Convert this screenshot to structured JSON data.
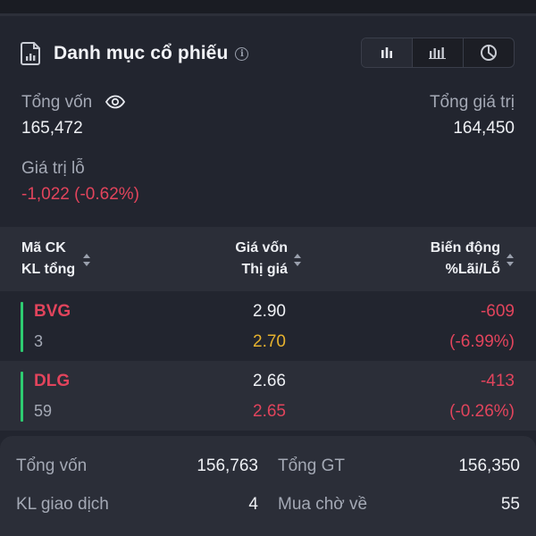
{
  "portfolio": {
    "title": "Danh mục cổ phiếu",
    "view_options": [
      "bar-chart-icon",
      "column-chart-icon",
      "pie-chart-icon"
    ],
    "total_capital_label": "Tổng vốn",
    "total_capital_value": "165,472",
    "total_value_label": "Tổng giá trị",
    "total_value_value": "164,450",
    "pnl_label": "Giá trị lỗ",
    "pnl_value": "-1,022 (-0.62%)"
  },
  "table": {
    "col1_line1": "Mã CK",
    "col1_line2": "KL tổng",
    "col2_line1": "Giá vốn",
    "col2_line2": "Thị giá",
    "col3_line1": "Biến động",
    "col3_line2": "%Lãi/Lỗ",
    "rows": [
      {
        "symbol": "BVG",
        "qty": "3",
        "cost": "2.90",
        "market": "2.70",
        "change": "-609",
        "pct": "(-6.99%)"
      },
      {
        "symbol": "DLG",
        "qty": "59",
        "cost": "2.66",
        "market": "2.65",
        "change": "-413",
        "pct": "(-0.26%)"
      }
    ]
  },
  "summary": {
    "total_capital_label": "Tổng vốn",
    "total_capital_value": "156,763",
    "total_gt_label": "Tổng GT",
    "total_gt_value": "156,350",
    "trade_qty_label": "KL giao dịch",
    "trade_qty_value": "4",
    "pending_buy_label": "Mua chờ về",
    "pending_buy_value": "55"
  },
  "colors": {
    "negative": "#e2445c",
    "reference": "#e7b22e",
    "positive_bar": "#2ecc71"
  }
}
